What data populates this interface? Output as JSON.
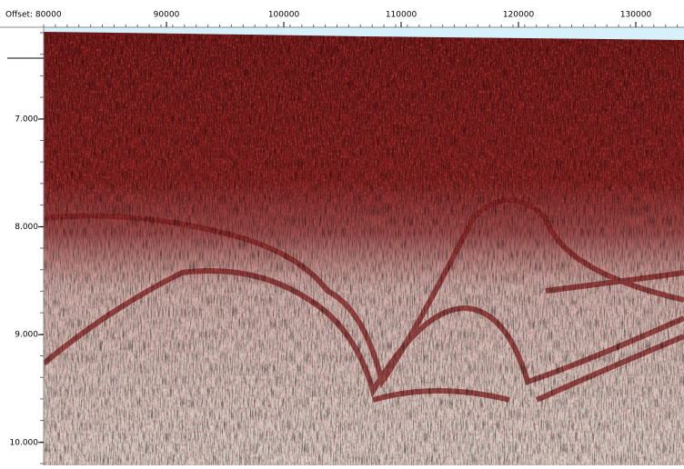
{
  "top_axis": {
    "label": "Offset: 80000",
    "ticks": [
      "90000",
      "100000",
      "110000",
      "120000",
      "130000"
    ]
  },
  "left_axis": {
    "ticks": [
      "7.000",
      "8.000",
      "9.000",
      "10.000"
    ]
  }
}
